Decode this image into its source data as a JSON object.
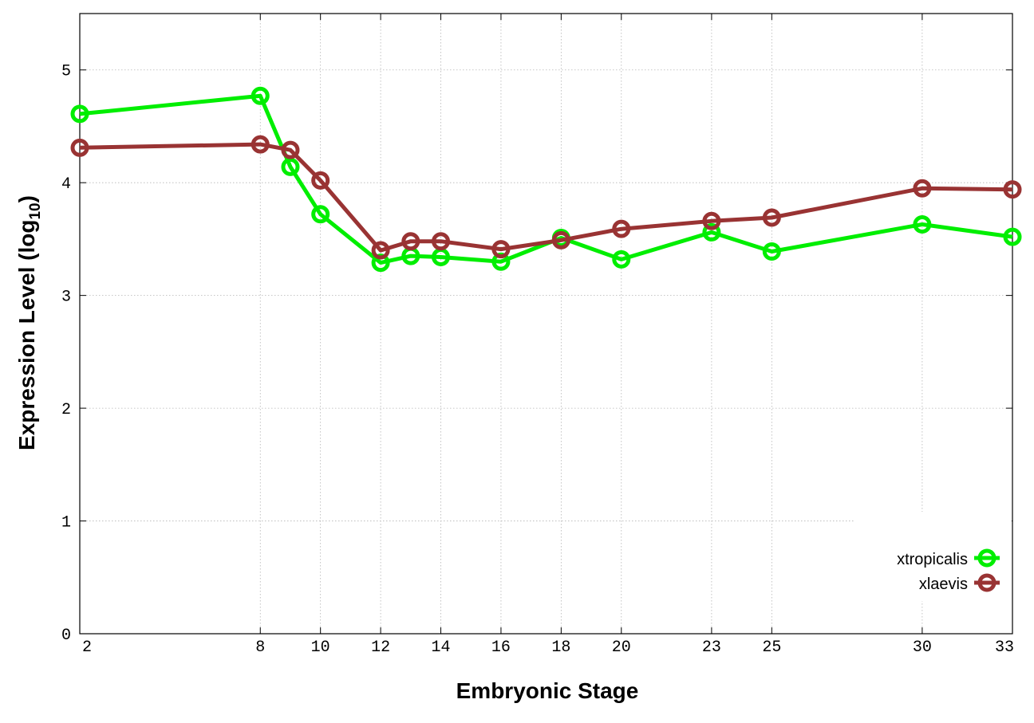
{
  "chart_data": {
    "type": "line",
    "xlabel": "Embryonic Stage",
    "ylabel_main": "Expression Level (log",
    "ylabel_sub": "10",
    "ylabel_close": ")",
    "xlim": [
      2,
      33
    ],
    "ylim": [
      0,
      5.5
    ],
    "x_ticks": [
      2,
      8,
      10,
      12,
      14,
      16,
      18,
      20,
      23,
      25,
      30,
      33
    ],
    "y_ticks": [
      0,
      1,
      2,
      3,
      4,
      5
    ],
    "grid": true,
    "legend_position": "bottom-right",
    "x": [
      2,
      8,
      9,
      10,
      12,
      13,
      14,
      16,
      18,
      20,
      23,
      25,
      30,
      33
    ],
    "series": [
      {
        "name": "xtropicalis",
        "color": "#00ee00",
        "values": [
          4.61,
          4.77,
          4.14,
          3.72,
          3.29,
          3.35,
          3.34,
          3.3,
          3.51,
          3.32,
          3.56,
          3.39,
          3.63,
          3.52
        ]
      },
      {
        "name": "xlaevis",
        "color": "#993333",
        "values": [
          4.31,
          4.34,
          4.29,
          4.02,
          3.4,
          3.48,
          3.48,
          3.41,
          3.49,
          3.59,
          3.66,
          3.69,
          3.95,
          3.94
        ]
      }
    ]
  }
}
